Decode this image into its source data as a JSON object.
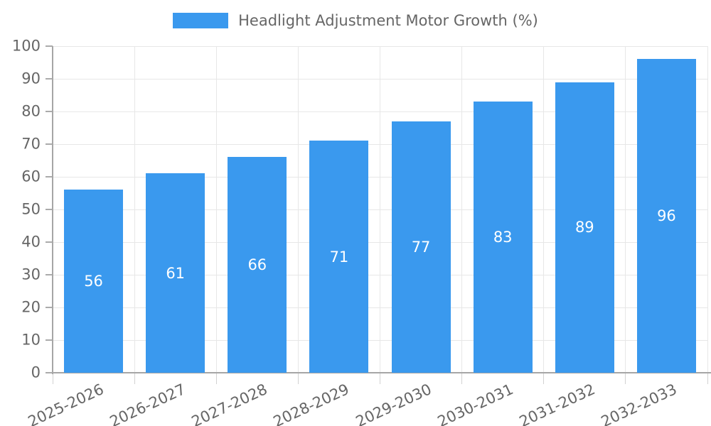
{
  "chart_data": {
    "type": "bar",
    "title": "Headlight Adjustment Motor Growth (%)",
    "categories": [
      "2025-2026",
      "2026-2027",
      "2027-2028",
      "2028-2029",
      "2029-2030",
      "2030-2031",
      "2031-2032",
      "2032-2033"
    ],
    "values": [
      56,
      61,
      66,
      71,
      77,
      83,
      89,
      96
    ],
    "xlabel": "",
    "ylabel": "",
    "ylim": [
      0,
      100
    ],
    "yticks": [
      0,
      10,
      20,
      30,
      40,
      50,
      60,
      70,
      80,
      90,
      100
    ],
    "grid": true,
    "legend_position": "top",
    "x_label_rotation_deg": -25,
    "bar_color": "#3A99EE",
    "value_label_color": "#FFFFFF",
    "axis_color": "#A6A6A6",
    "grid_color": "#E7E7E7",
    "tick_mark_color": "#ABABAB",
    "x_tick_mark_color": "#D2D2D2",
    "tick_text_color": "#666666"
  }
}
